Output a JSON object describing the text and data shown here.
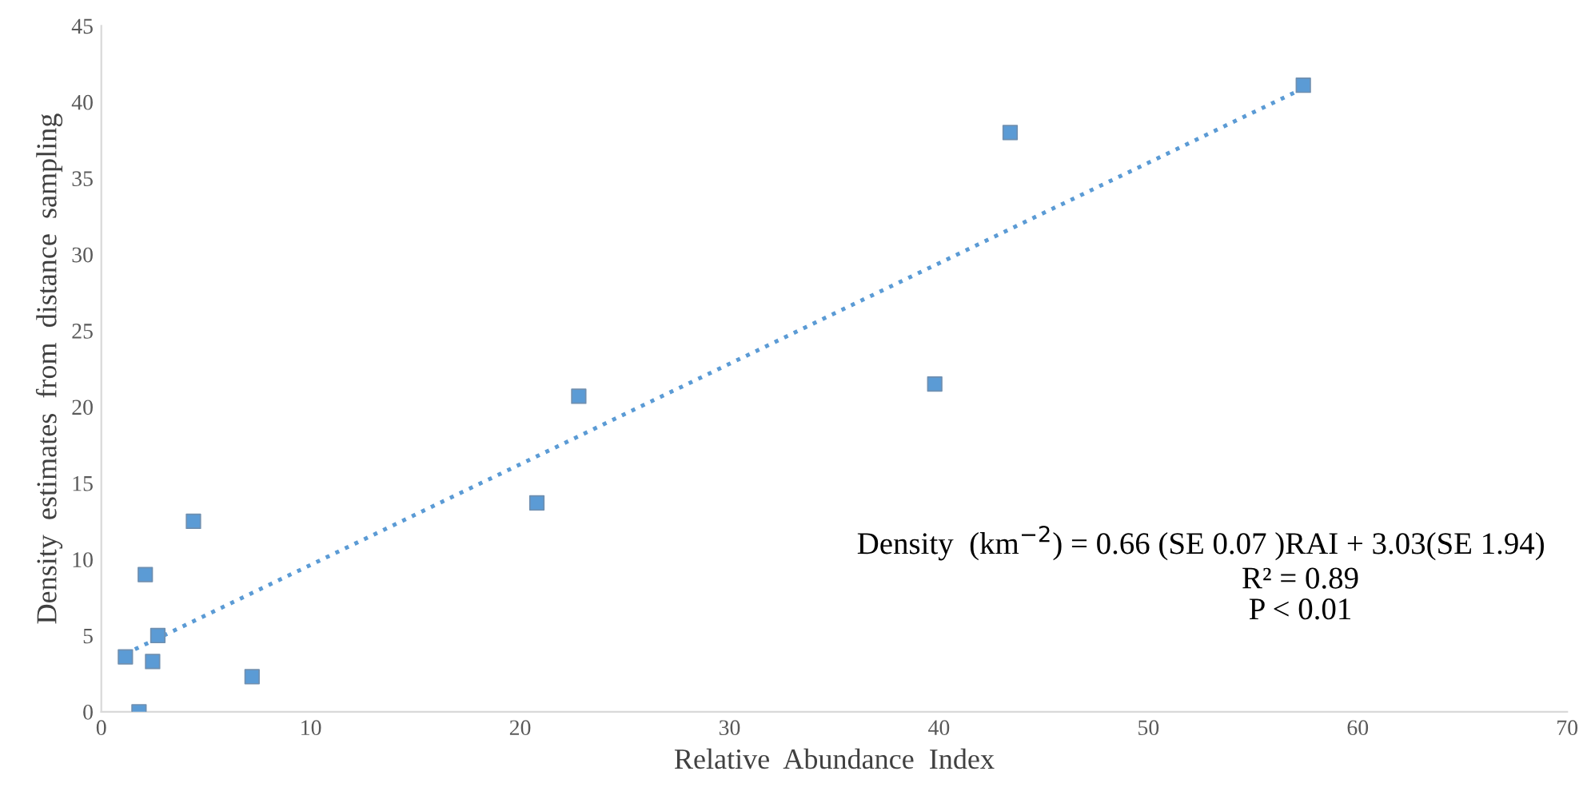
{
  "chart_data": {
    "type": "scatter",
    "xlabel": "Relative  Abundance  Index",
    "ylabel": "Density  estimates  from  distance  sampling",
    "xlim": [
      0,
      70
    ],
    "xticks": [
      0,
      10,
      20,
      30,
      40,
      50,
      60,
      70
    ],
    "ylim": [
      0,
      45
    ],
    "yticks": [
      0,
      5,
      10,
      15,
      20,
      25,
      30,
      35,
      40,
      45
    ],
    "grid": false,
    "legend": false,
    "marker": "square",
    "series": [
      {
        "color": "#5b9bd5",
        "x": [
          1.15,
          1.8,
          2.1,
          2.45,
          2.7,
          4.4,
          7.2,
          20.8,
          22.8,
          39.8,
          43.4,
          57.4
        ],
        "values": [
          3.6,
          0,
          9.0,
          3.3,
          5.0,
          12.5,
          2.3,
          13.7,
          20.7,
          21.5,
          38.0,
          41.1
        ]
      },
      {
        "type": "line",
        "color": "#5b9bd5",
        "line_style": "dotted",
        "marker": "none",
        "x": [
          1.15,
          57.4
        ],
        "values": [
          3.8,
          40.9
        ]
      }
    ],
    "annotations": [
      "Density  (km$^{−2}$) = 0.66 (SE 0.07 )RAI + 3.03(SE 1.94)",
      "R² = 0.89",
      "P < 0.01"
    ]
  }
}
